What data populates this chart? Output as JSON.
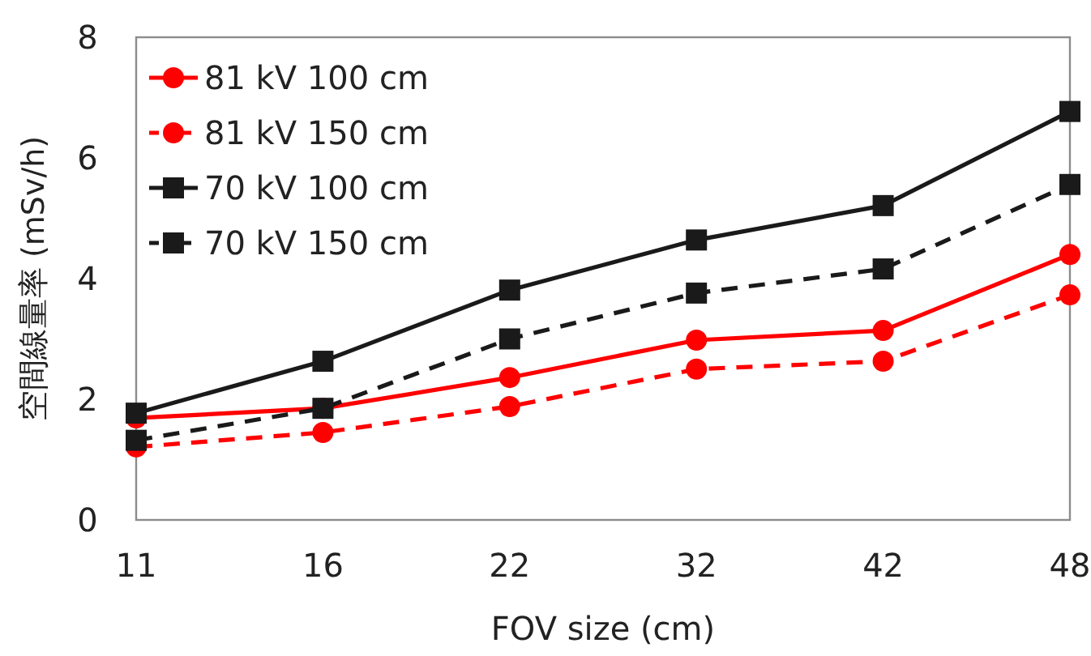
{
  "chart_data": {
    "type": "line",
    "xlabel": "FOV size (cm)",
    "ylabel": "空間線量率 (mSv/h)",
    "categories": [
      "11",
      "16",
      "22",
      "32",
      "42",
      "48"
    ],
    "series": [
      {
        "name": "81 kV 100 cm",
        "color": "#ff0000",
        "marker": "circle",
        "line_style": "solid",
        "values": [
          1.69,
          1.85,
          2.36,
          2.98,
          3.14,
          4.4
        ]
      },
      {
        "name": "81 kV 150 cm",
        "color": "#ff0000",
        "marker": "circle",
        "line_style": "dashed",
        "values": [
          1.21,
          1.45,
          1.88,
          2.5,
          2.63,
          3.73
        ]
      },
      {
        "name": "70 kV 100 cm",
        "color": "#1a1a1a",
        "marker": "square",
        "line_style": "solid",
        "values": [
          1.77,
          2.63,
          3.81,
          4.64,
          5.21,
          6.77
        ]
      },
      {
        "name": "70 kV 150 cm",
        "color": "#1a1a1a",
        "marker": "square",
        "line_style": "dashed",
        "values": [
          1.32,
          1.85,
          3.0,
          3.76,
          4.16,
          5.56
        ]
      }
    ],
    "ylim": [
      0,
      8
    ],
    "yticks": [
      0,
      2,
      4,
      6,
      8
    ],
    "grid": false,
    "legend": "top left"
  }
}
